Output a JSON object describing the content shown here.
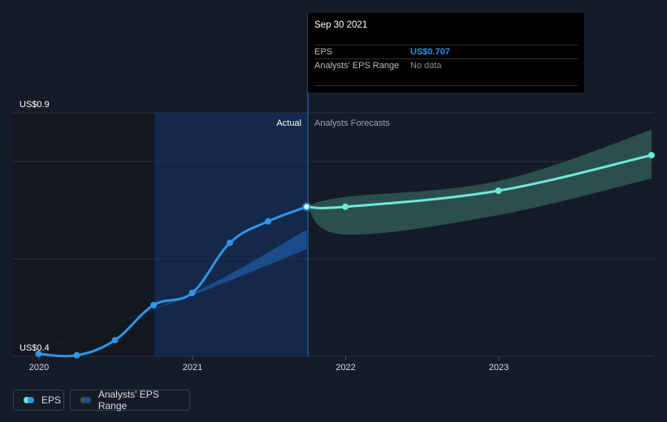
{
  "colors": {
    "background": "#161c27",
    "eps_line": "#2f95e8",
    "forecast_line": "#6ee8d8",
    "forecast_band": "#2e5855",
    "actual_band": "#1c4e8c",
    "actual_highlight": "#13284a"
  },
  "tooltip": {
    "date": "Sep 30 2021",
    "eps_label": "EPS",
    "eps_value": "US$0.707",
    "range_label": "Analysts' EPS Range",
    "range_value": "No data"
  },
  "labels": {
    "actual": "Actual",
    "forecasts": "Analysts Forecasts"
  },
  "legend": {
    "eps": "EPS",
    "range": "Analysts' EPS Range"
  },
  "chart_data": {
    "type": "line",
    "ylim": [
      0.4,
      0.9
    ],
    "y_tick_labels": [
      {
        "value": 0.9,
        "label": "US$0.9"
      },
      {
        "value": 0.4,
        "label": "US$0.4"
      }
    ],
    "x_ticks": [
      {
        "label": "2020",
        "x": "2020-01-01"
      },
      {
        "label": "2021",
        "x": "2021-01-01"
      },
      {
        "label": "2022",
        "x": "2022-01-01"
      },
      {
        "label": "2023",
        "x": "2023-01-01"
      }
    ],
    "series": [
      {
        "name": "EPS",
        "points": [
          {
            "x": "2019-12-31",
            "y": 0.405
          },
          {
            "x": "2020-03-31",
            "y": 0.402
          },
          {
            "x": "2020-06-30",
            "y": 0.433
          },
          {
            "x": "2020-09-30",
            "y": 0.505
          },
          {
            "x": "2020-12-31",
            "y": 0.53
          },
          {
            "x": "2021-03-31",
            "y": 0.633
          },
          {
            "x": "2021-06-30",
            "y": 0.677
          },
          {
            "x": "2021-09-30",
            "y": 0.707
          }
        ]
      },
      {
        "name": "Analysts Forecasts",
        "points": [
          {
            "x": "2021-09-30",
            "y": 0.707
          },
          {
            "x": "2021-12-31",
            "y": 0.707
          },
          {
            "x": "2022-12-31",
            "y": 0.74
          },
          {
            "x": "2023-12-31",
            "y": 0.813
          }
        ]
      }
    ],
    "ranges": [
      {
        "name": "Analysts' EPS Range",
        "upper": [
          {
            "x": "2021-09-30",
            "y": 0.707
          },
          {
            "x": "2021-12-31",
            "y": 0.727
          },
          {
            "x": "2022-12-31",
            "y": 0.76
          },
          {
            "x": "2023-12-31",
            "y": 0.865
          }
        ],
        "lower": [
          {
            "x": "2021-09-30",
            "y": 0.707
          },
          {
            "x": "2021-12-31",
            "y": 0.65
          },
          {
            "x": "2022-12-31",
            "y": 0.69
          },
          {
            "x": "2023-12-31",
            "y": 0.765
          }
        ]
      },
      {
        "name": "Analysts' EPS Range (past)",
        "upper": [
          {
            "x": "2019-12-31",
            "y": 0.41
          },
          {
            "x": "2020-12-31",
            "y": 0.53
          },
          {
            "x": "2021-09-30",
            "y": 0.66
          }
        ],
        "lower": [
          {
            "x": "2019-12-31",
            "y": 0.41
          },
          {
            "x": "2020-12-31",
            "y": 0.525
          },
          {
            "x": "2021-09-30",
            "y": 0.62
          }
        ]
      }
    ],
    "divider_date": "2021-09-30",
    "grid": true,
    "legend_position": "bottom-left"
  }
}
